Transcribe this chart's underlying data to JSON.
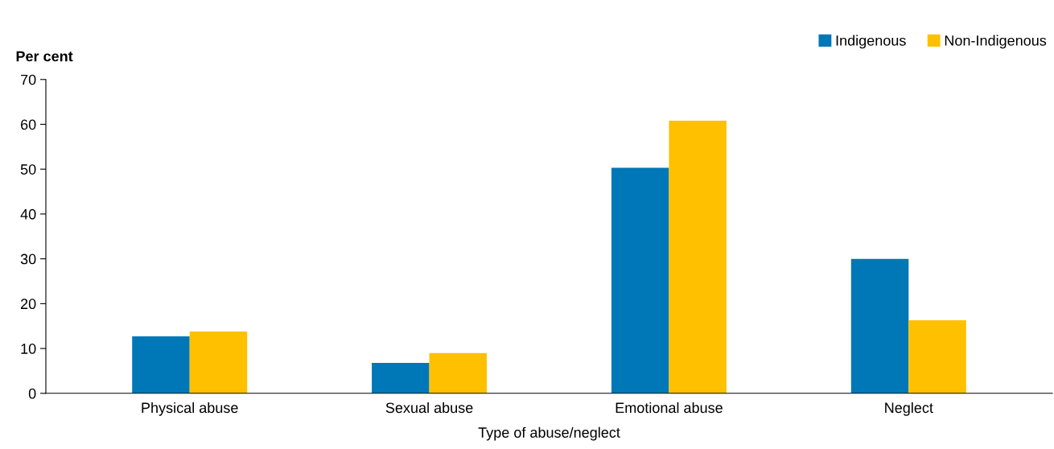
{
  "chart_data": {
    "type": "bar",
    "xlabel": "Type of abuse/neglect",
    "ylabel": "Per cent",
    "categories": [
      "Physical abuse",
      "Sexual abuse",
      "Emotional abuse",
      "Neglect"
    ],
    "series": [
      {
        "name": "Indigenous",
        "color": "#0077b6",
        "values": [
          12.7,
          6.8,
          50.3,
          30.0
        ]
      },
      {
        "name": "Non-Indigenous",
        "color": "#ffc000",
        "values": [
          13.8,
          9.0,
          60.8,
          16.3
        ]
      }
    ],
    "ylim": [
      0,
      70
    ],
    "yticks": [
      0,
      10,
      20,
      30,
      40,
      50,
      60,
      70
    ],
    "grid": false,
    "legend": "top right"
  }
}
